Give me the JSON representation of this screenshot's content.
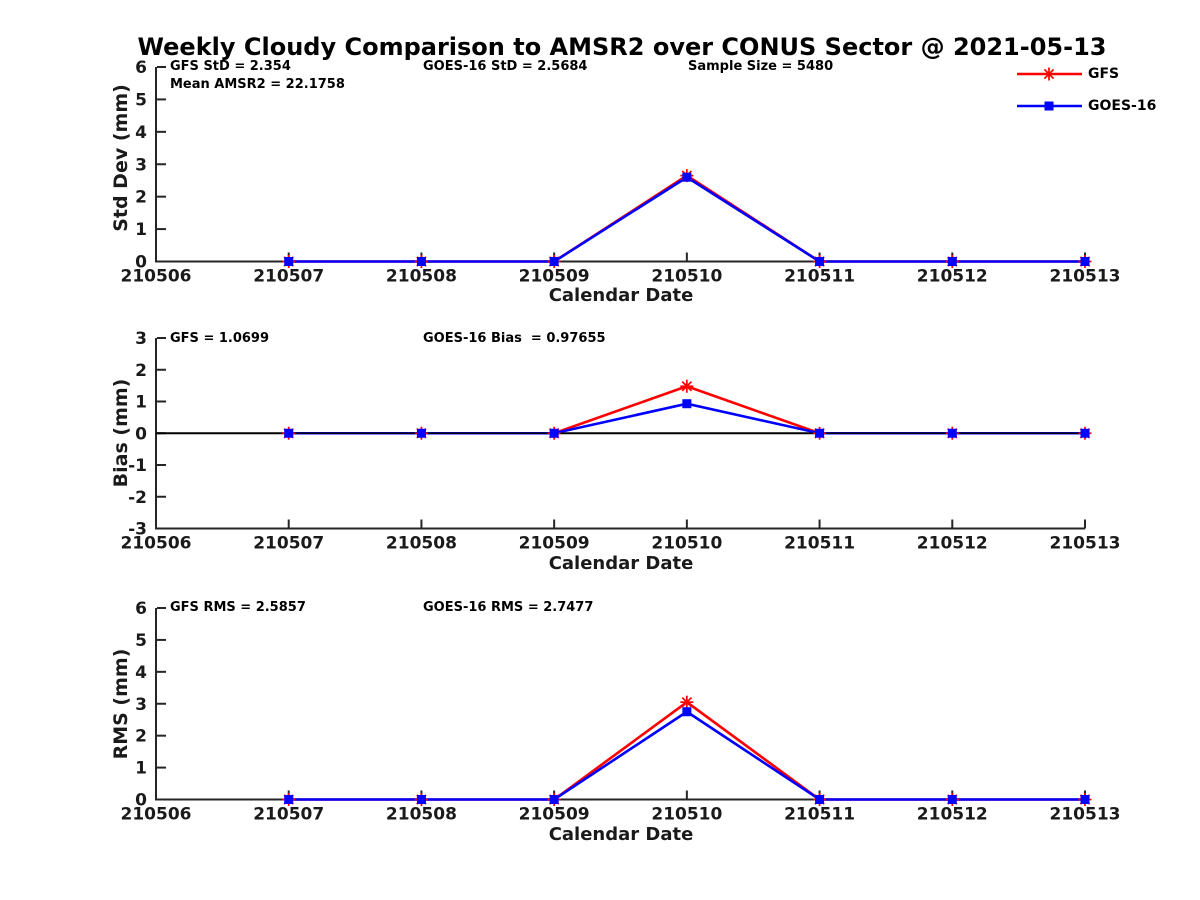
{
  "title": "Weekly Cloudy Comparison to AMSR2 over CONUS Sector @ 2021-05-13",
  "colors": {
    "gfs": "#ff0000",
    "goes16": "#0000ff",
    "axis": "#262626",
    "zero_line": "#000000",
    "background": "#ffffff"
  },
  "legend": {
    "position": "top-right",
    "items": [
      {
        "label": "GFS",
        "color": "#ff0000",
        "marker": "asterisk"
      },
      {
        "label": "GOES-16",
        "color": "#0000ff",
        "marker": "square"
      }
    ]
  },
  "chart_data": {
    "type": "line",
    "grid": false,
    "x_categories": [
      "210506",
      "210507",
      "210508",
      "210509",
      "210510",
      "210511",
      "210512",
      "210513"
    ],
    "xlabel": "Calendar Date",
    "subplots": [
      {
        "name": "std-dev",
        "ylabel": "Std Dev (mm)",
        "ylim": [
          0,
          6
        ],
        "yticks": [
          0,
          1,
          2,
          3,
          4,
          5,
          6
        ],
        "zero_line": false,
        "annotations": {
          "left": "GFS StD = 2.354",
          "left2": "Mean AMSR2 = 22.1758",
          "center": "GOES-16 StD = 2.5684",
          "right": "Sample Size = 5480"
        },
        "series": [
          {
            "name": "GFS",
            "color": "#ff0000",
            "marker": "asterisk",
            "x": [
              "210507",
              "210508",
              "210509",
              "210510",
              "210511",
              "210512",
              "210513"
            ],
            "values": [
              0,
              0,
              0,
              2.65,
              0,
              0,
              0
            ]
          },
          {
            "name": "GOES-16",
            "color": "#0000ff",
            "marker": "square",
            "x": [
              "210507",
              "210508",
              "210509",
              "210510",
              "210511",
              "210512",
              "210513"
            ],
            "values": [
              0,
              0,
              0,
              2.6,
              0,
              0,
              0
            ]
          }
        ]
      },
      {
        "name": "bias",
        "ylabel": "Bias (mm)",
        "ylim": [
          -3,
          3
        ],
        "yticks": [
          -3,
          -2,
          -1,
          0,
          1,
          2,
          3
        ],
        "zero_line": true,
        "annotations": {
          "left": "GFS = 1.0699",
          "center": "GOES-16 Bias  = 0.97655"
        },
        "series": [
          {
            "name": "GFS",
            "color": "#ff0000",
            "marker": "asterisk",
            "x": [
              "210507",
              "210508",
              "210509",
              "210510",
              "210511",
              "210512",
              "210513"
            ],
            "values": [
              0,
              0,
              0,
              1.48,
              0,
              0,
              0
            ]
          },
          {
            "name": "GOES-16",
            "color": "#0000ff",
            "marker": "square",
            "x": [
              "210507",
              "210508",
              "210509",
              "210510",
              "210511",
              "210512",
              "210513"
            ],
            "values": [
              0,
              0,
              0,
              0.93,
              0,
              0,
              0
            ]
          }
        ]
      },
      {
        "name": "rms",
        "ylabel": "RMS (mm)",
        "ylim": [
          0,
          6
        ],
        "yticks": [
          0,
          1,
          2,
          3,
          4,
          5,
          6
        ],
        "zero_line": false,
        "annotations": {
          "left": "GFS RMS = 2.5857",
          "center": "GOES-16 RMS = 2.7477"
        },
        "series": [
          {
            "name": "GFS",
            "color": "#ff0000",
            "marker": "asterisk",
            "x": [
              "210507",
              "210508",
              "210509",
              "210510",
              "210511",
              "210512",
              "210513"
            ],
            "values": [
              0,
              0,
              0,
              3.05,
              0,
              0,
              0
            ]
          },
          {
            "name": "GOES-16",
            "color": "#0000ff",
            "marker": "square",
            "x": [
              "210507",
              "210508",
              "210509",
              "210510",
              "210511",
              "210512",
              "210513"
            ],
            "values": [
              0,
              0,
              0,
              2.75,
              0,
              0,
              0
            ]
          }
        ]
      }
    ]
  }
}
